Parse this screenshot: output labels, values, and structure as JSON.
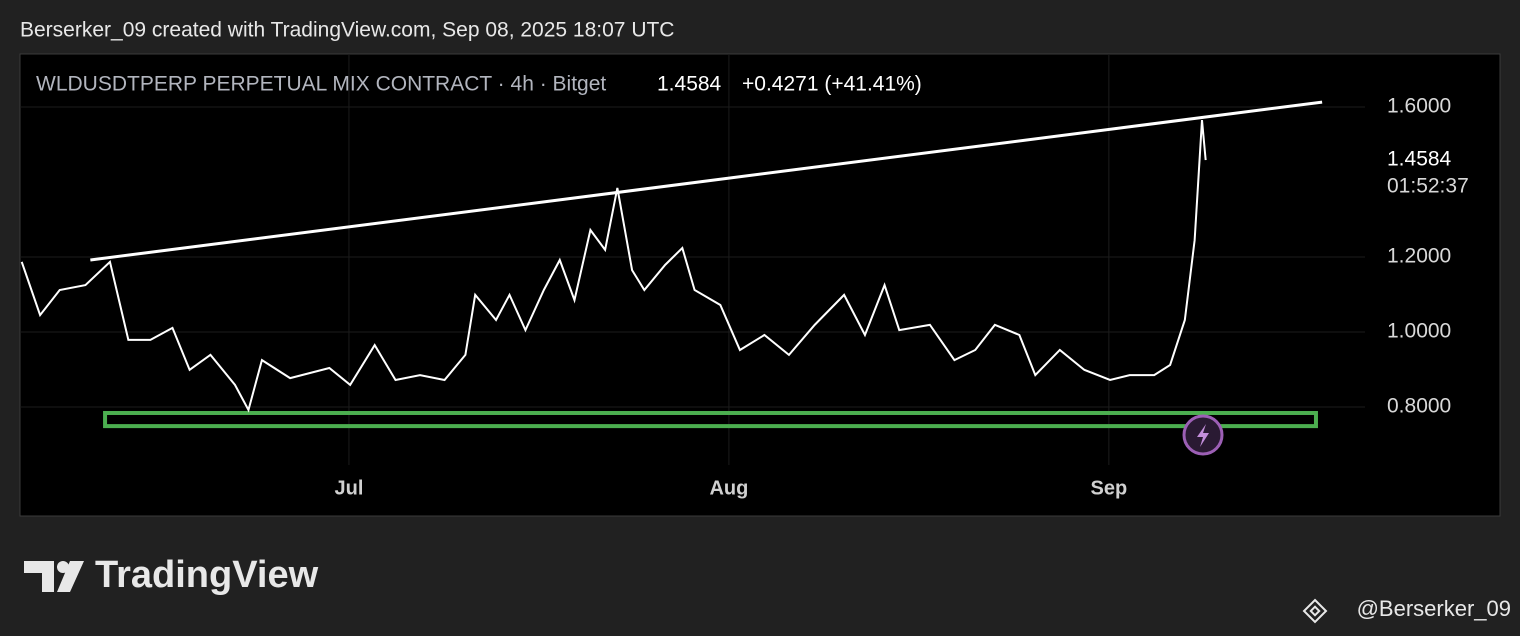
{
  "header": {
    "credit": "Berserker_09 created with TradingView.com, Sep 08, 2025 18:07 UTC"
  },
  "chart_data": {
    "type": "line",
    "symbol": "WLDUSDTPERP PERPETUAL MIX CONTRACT · 4h · Bitget",
    "price": "1.4584",
    "change": "+0.4271 (+41.41%)",
    "x": [
      3.3,
      4.8,
      6.4,
      8.5,
      10.5,
      12.0,
      13.8,
      15.6,
      17.0,
      18.7,
      20.7,
      21.8,
      22.9,
      25.2,
      28.4,
      30.1,
      32.1,
      33.8,
      35.8,
      37.8,
      39.5,
      40.3,
      42.0,
      43.1,
      44.4,
      45.9,
      47.2,
      48.4,
      49.7,
      50.9,
      51.9,
      53.1,
      54.1,
      55.8,
      57.2,
      58.2,
      60.3,
      61.9,
      63.9,
      65.9,
      68.0,
      70.4,
      72.1,
      73.7,
      74.9,
      77.4,
      79.4,
      81.1,
      82.7,
      84.7,
      86.0,
      88.0,
      90.0,
      92.1,
      93.7,
      95.7,
      97.0,
      98.2,
      99.0,
      99.6,
      99.9
    ],
    "values": [
      1.187,
      1.045,
      1.112,
      1.125,
      1.187,
      0.979,
      0.979,
      1.011,
      0.899,
      0.939,
      0.859,
      0.792,
      0.925,
      0.877,
      0.904,
      0.859,
      0.965,
      0.872,
      0.885,
      0.872,
      0.939,
      1.099,
      1.032,
      1.099,
      1.005,
      1.112,
      1.192,
      1.085,
      1.272,
      1.219,
      1.384,
      1.165,
      1.112,
      1.179,
      1.224,
      1.112,
      1.072,
      0.952,
      0.992,
      0.939,
      1.019,
      1.099,
      0.992,
      1.125,
      1.005,
      1.019,
      0.925,
      0.952,
      1.019,
      0.992,
      0.885,
      0.952,
      0.899,
      0.872,
      0.885,
      0.885,
      0.912,
      1.032,
      1.245,
      1.565,
      1.4584
    ],
    "color": "#ffffff",
    "xlim": [
      3.16,
      112.9
    ],
    "xticks": [
      {
        "value": 30,
        "label": "Jul"
      },
      {
        "value": 61,
        "label": "Aug"
      },
      {
        "value": 92,
        "label": "Sep"
      }
    ],
    "ylim": [
      0.6453,
      1.7413
    ],
    "yticks": [
      {
        "value": 0.8,
        "label": "0.8000"
      },
      {
        "value": 1.0,
        "label": "1.0000"
      },
      {
        "value": 1.2,
        "label": "1.2000"
      },
      {
        "value": 1.6,
        "label": "1.6000"
      }
    ],
    "grid": true,
    "last_price": 1.4584,
    "countdown": "01:52:37",
    "trendline": {
      "x": [
        8.9,
        109.4
      ],
      "values": [
        1.192,
        1.613
      ],
      "color": "#ffffff"
    },
    "zone": {
      "x": [
        10.1,
        108.9
      ],
      "values": [
        0.749,
        0.784
      ],
      "color": "#4caf50"
    }
  },
  "footer": {
    "logo": "TradingView",
    "watermark": "@Berserker_09"
  }
}
